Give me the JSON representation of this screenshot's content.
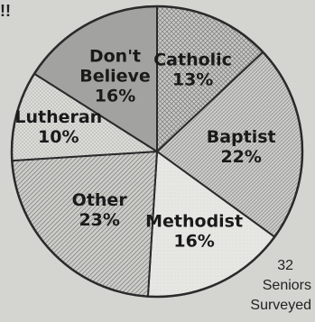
{
  "corner_mark": "!!",
  "note": {
    "line1": "32",
    "line2": "Seniors",
    "line3": "Surveyed"
  },
  "chart_data": {
    "type": "pie",
    "title": "",
    "slices": [
      {
        "label": [
          "Catholic",
          "13%"
        ],
        "value": 13,
        "pattern": "hatch-cross"
      },
      {
        "label": [
          "Baptist",
          "22%"
        ],
        "value": 22,
        "pattern": "hatch-fine"
      },
      {
        "label": [
          "Methodist",
          "16%"
        ],
        "value": 16,
        "pattern": "plain-light"
      },
      {
        "label": [
          "Other",
          "23%"
        ],
        "value": 23,
        "pattern": "hatch-diag"
      },
      {
        "label": [
          "Lutheran",
          "10%"
        ],
        "value": 10,
        "pattern": "dots"
      },
      {
        "label": [
          "Don't",
          "Believe",
          "16%"
        ],
        "value": 16,
        "pattern": "hatch-vertical"
      }
    ],
    "start_angle_deg": 0,
    "direction": "clockwise"
  }
}
